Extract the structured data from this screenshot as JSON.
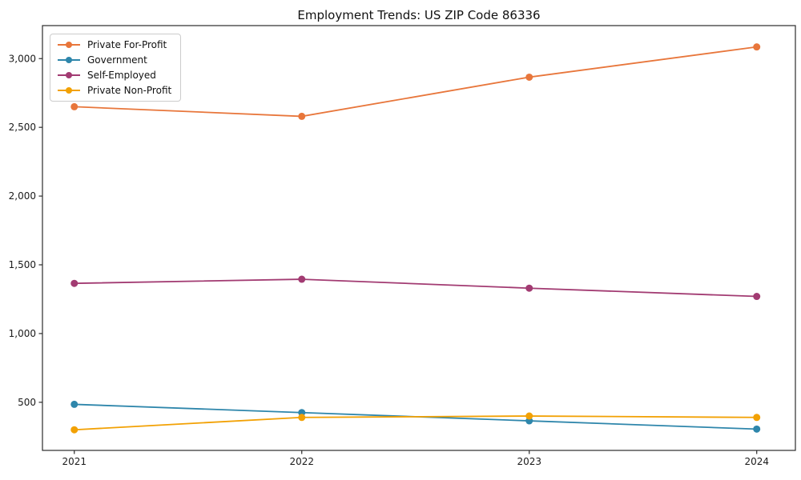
{
  "figure": {
    "title": "Employment Trends: US ZIP Code 86336",
    "background_color": "#ffffff",
    "spine_color": "#2b2b2b",
    "tick_label_color": "#1a1a1a"
  },
  "chart_data": {
    "type": "line",
    "title": "Employment Trends: US ZIP Code 86336",
    "xlabel": "",
    "ylabel": "",
    "x": [
      2021,
      2022,
      2023,
      2024
    ],
    "xtick_labels": [
      "2021",
      "2022",
      "2023",
      "2024"
    ],
    "yticks": [
      500,
      1000,
      1500,
      2000,
      2500,
      3000
    ],
    "ytick_labels": [
      "500",
      "1,000",
      "1,500",
      "2,000",
      "2,500",
      "3,000"
    ],
    "xlim": [
      2020.86,
      2024.17
    ],
    "ylim": [
      150,
      3240
    ],
    "grid": false,
    "legend_position": "upper left",
    "series": [
      {
        "name": "Private For-Profit",
        "color": "#E8763B",
        "values": [
          2650,
          2580,
          2865,
          3085
        ]
      },
      {
        "name": "Government",
        "color": "#2E86AB",
        "values": [
          485,
          425,
          365,
          305
        ]
      },
      {
        "name": "Self-Employed",
        "color": "#A23B72",
        "values": [
          1365,
          1395,
          1330,
          1270
        ]
      },
      {
        "name": "Private Non-Profit",
        "color": "#F2A104",
        "values": [
          300,
          390,
          400,
          390
        ]
      }
    ]
  }
}
